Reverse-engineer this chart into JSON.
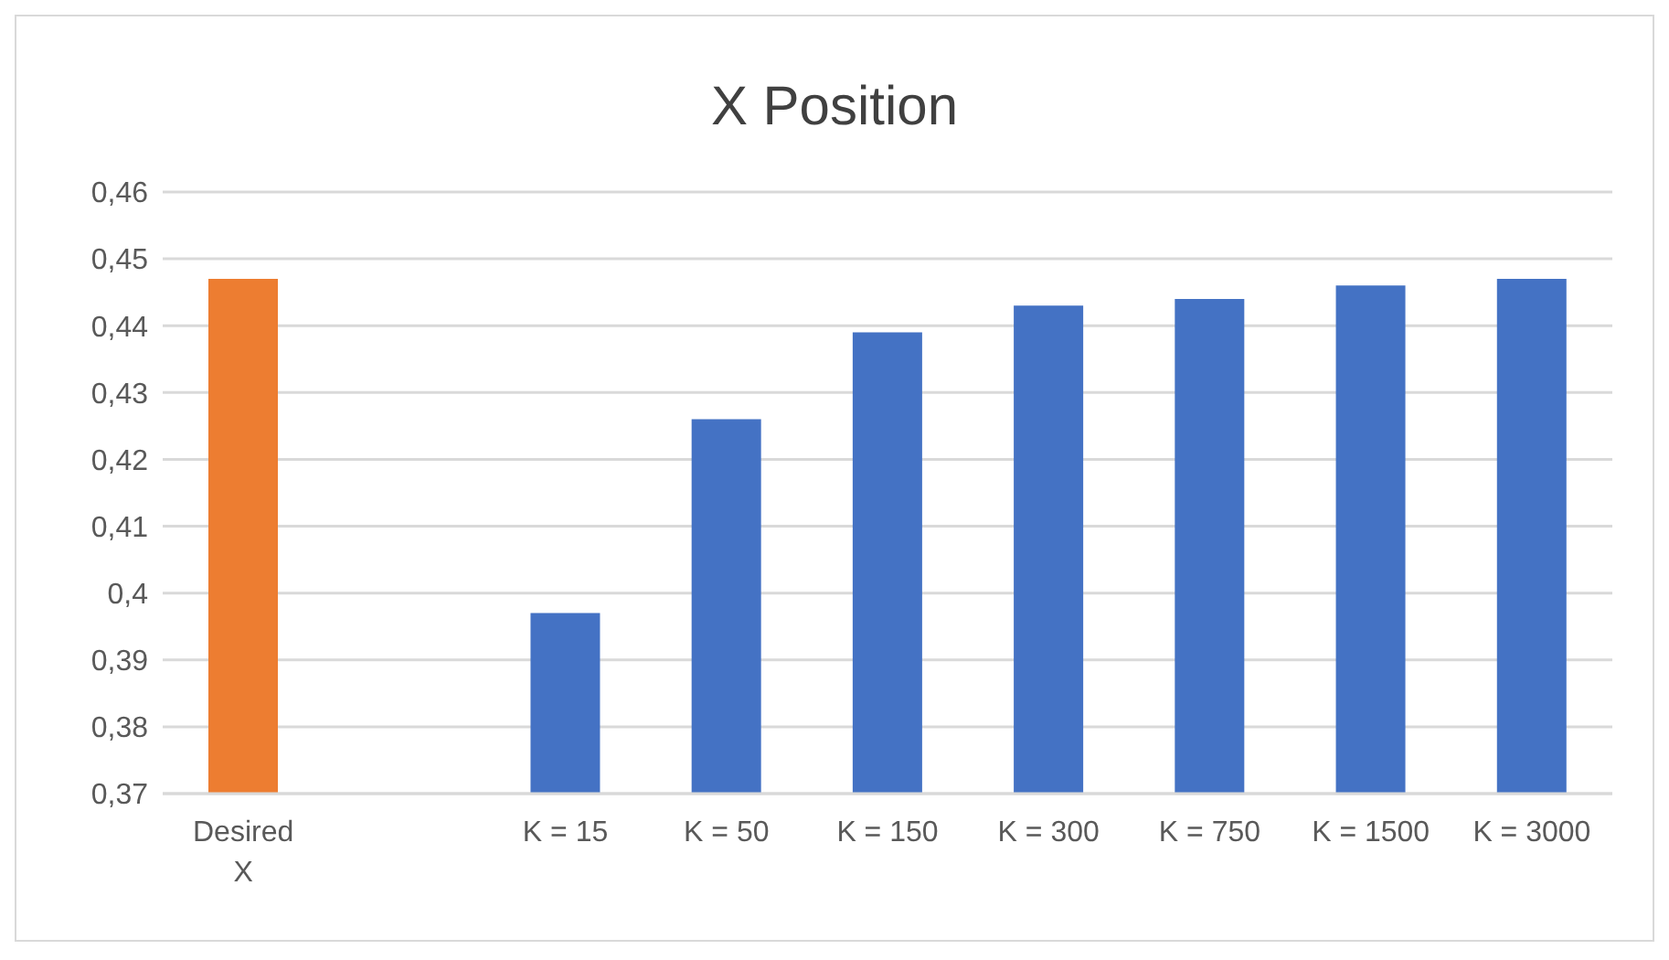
{
  "chart_data": {
    "type": "bar",
    "title": "X Position",
    "categories": [
      "Desired X",
      null,
      "K = 15",
      "K = 50",
      "K = 150",
      "K = 300",
      "K = 750",
      "K = 1500",
      "K = 3000"
    ],
    "values": [
      0.447,
      null,
      0.397,
      0.426,
      0.439,
      0.443,
      0.444,
      0.446,
      0.447
    ],
    "colors": [
      "#ed7d31",
      "#4472c4",
      "#4472c4",
      "#4472c4",
      "#4472c4",
      "#4472c4",
      "#4472c4",
      "#4472c4",
      "#4472c4"
    ],
    "ylim": [
      0.37,
      0.46
    ],
    "yticks": [
      {
        "value": 0.37,
        "label": "0,37"
      },
      {
        "value": 0.38,
        "label": "0,38"
      },
      {
        "value": 0.39,
        "label": "0,39"
      },
      {
        "value": 0.4,
        "label": "0,4"
      },
      {
        "value": 0.41,
        "label": "0,41"
      },
      {
        "value": 0.42,
        "label": "0,42"
      },
      {
        "value": 0.43,
        "label": "0,43"
      },
      {
        "value": 0.44,
        "label": "0,44"
      },
      {
        "value": 0.45,
        "label": "0,45"
      },
      {
        "value": 0.46,
        "label": "0,46"
      }
    ],
    "grid": "y",
    "legend": false
  }
}
